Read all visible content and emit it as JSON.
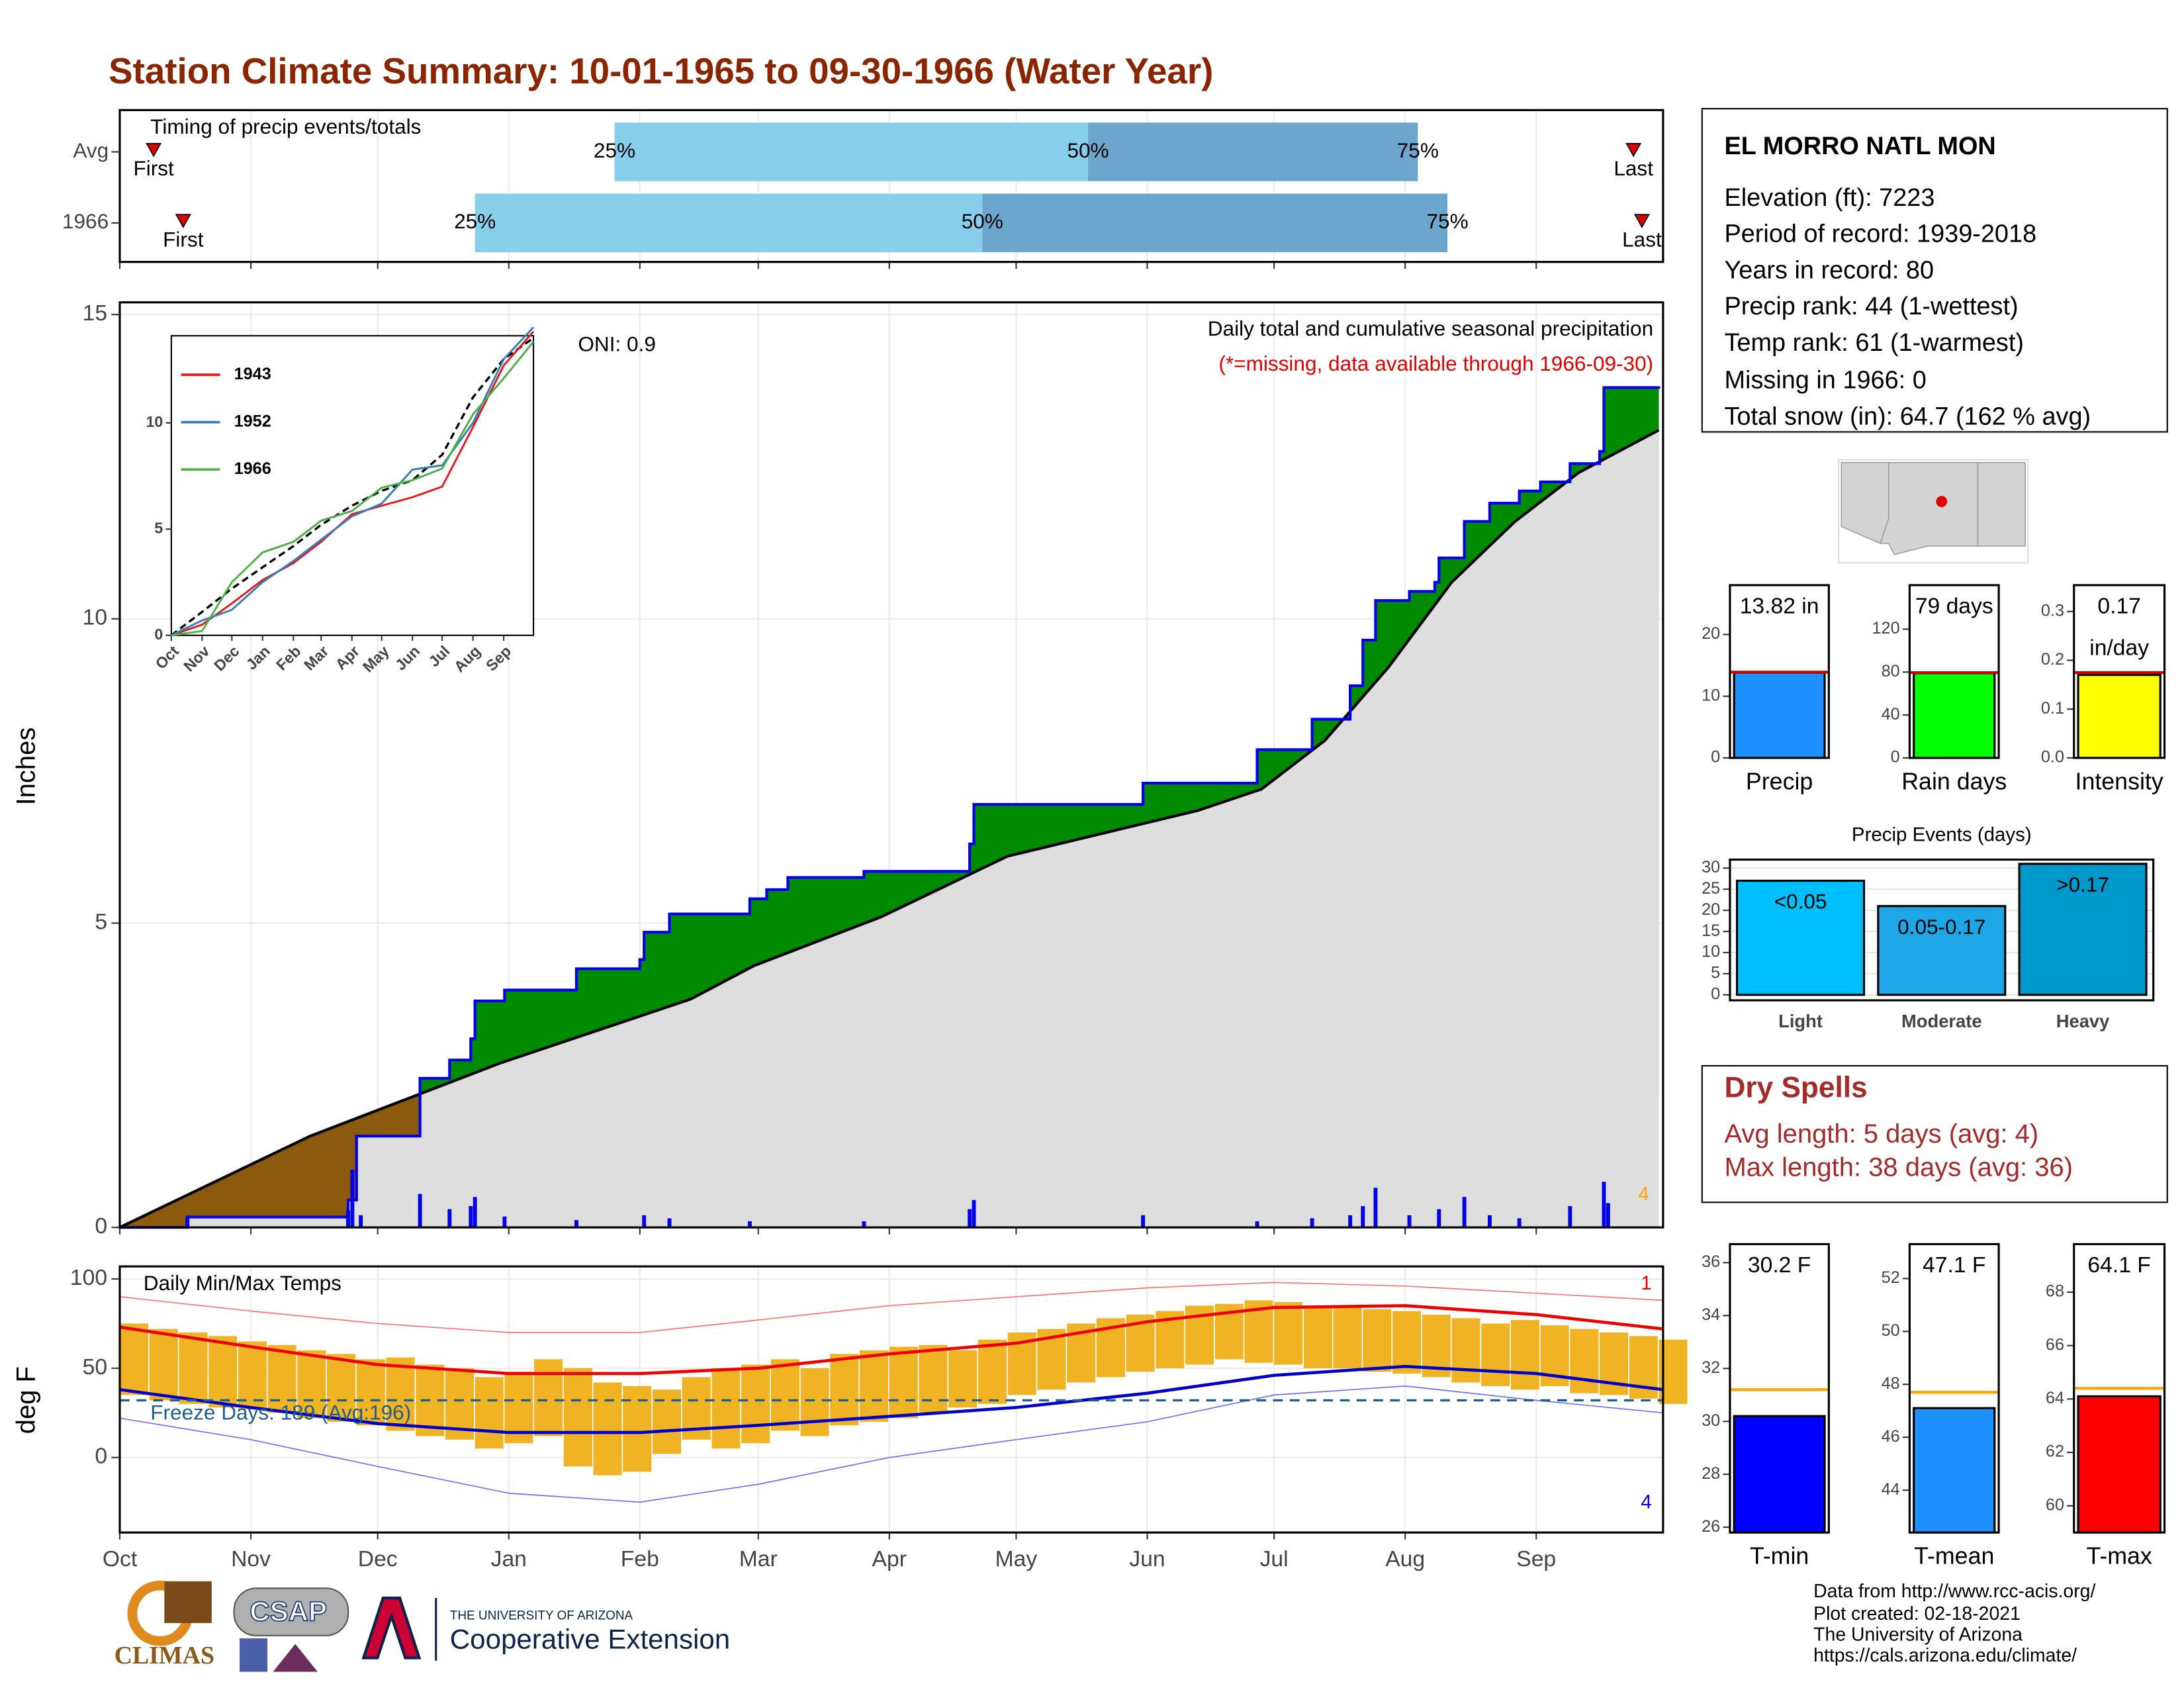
{
  "title": "Station Climate Summary: 10-01-1965 to 09-30-1966 (Water Year)",
  "station": {
    "name": "EL MORRO NATL MON",
    "lines": [
      "Elevation (ft): 7223",
      "Period of record: 1939-2018",
      "Years in record: 80",
      "Precip rank: 44 (1-wettest)",
      "Temp rank: 61 (1-warmest)",
      "Missing in 1966: 0",
      "Total snow (in): 64.7 (162 % avg)"
    ]
  },
  "dry_spells": {
    "title": "Dry Spells",
    "lines": [
      "Avg length: 5 days (avg: 4)",
      "Max length: 38 days (avg: 36)"
    ]
  },
  "credits": [
    "Data from http://www.rcc-acis.org/",
    "Plot created: 02-18-2021",
    "The University of Arizona",
    "https://cals.arizona.edu/climate/"
  ],
  "logos": {
    "climas": "CLIMAS",
    "csap": "CSAP",
    "university": "THE UNIVERSITY OF ARIZONA",
    "extension": "Cooperative Extension"
  },
  "chart_data": [
    {
      "type": "timing",
      "title": "Timing of precip events/totals",
      "quantile_labels": [
        "25%",
        "50%",
        "75%"
      ],
      "first_label": "First",
      "last_label": "Last",
      "xlim": [
        0,
        365
      ],
      "rows": [
        {
          "name": "Avg",
          "first": 8,
          "q25": 117,
          "q50": 229,
          "q75": 307,
          "last": 358
        },
        {
          "name": "1966",
          "first": 15,
          "q25": 84,
          "q50": 204,
          "q75": 314,
          "last": 360
        }
      ],
      "colors": [
        "#87ceeb",
        "#6ca6cd"
      ],
      "marker_color": "#e00000"
    },
    {
      "type": "cumulative",
      "title": "Daily total and cumulative seasonal precipitation",
      "subtitle": "(*=missing, data available through 1966-09-30)",
      "annotation": "ONI: 0.9",
      "y_label": "Inches",
      "xlim": [
        0,
        365
      ],
      "ylim": [
        0,
        15.2
      ],
      "yticks": [
        0,
        5,
        10,
        15
      ],
      "grid": true,
      "observed": {
        "color": "#0000ee",
        "x": [
          0,
          16,
          54,
          56,
          70,
          71,
          78,
          83,
          84,
          90,
          91,
          107,
          108,
          123,
          124,
          129,
          130,
          148,
          149,
          153,
          158,
          175,
          176,
          200,
          201,
          202,
          241,
          242,
          268,
          269,
          281,
          282,
          290,
          291,
          294,
          297,
          305,
          311,
          312,
          318,
          324,
          331,
          336,
          343,
          350,
          351,
          364
        ],
        "values": [
          0,
          0.17,
          0.45,
          1.5,
          1.5,
          2.45,
          2.75,
          3.1,
          3.72,
          3.72,
          3.9,
          3.9,
          4.25,
          4.4,
          4.85,
          4.85,
          5.15,
          5.15,
          5.4,
          5.55,
          5.75,
          5.75,
          5.85,
          5.85,
          6.3,
          6.95,
          6.95,
          7.3,
          7.3,
          7.85,
          7.85,
          8.35,
          8.35,
          8.9,
          9.65,
          10.3,
          10.45,
          10.6,
          11.0,
          11.6,
          11.9,
          12.1,
          12.25,
          12.55,
          12.75,
          13.8,
          13.82
        ]
      },
      "average": {
        "color": "#000000",
        "x": [
          0,
          15,
          30,
          45,
          60,
          75,
          90,
          105,
          120,
          135,
          150,
          165,
          180,
          195,
          210,
          225,
          240,
          255,
          270,
          285,
          300,
          315,
          330,
          345,
          364
        ],
        "values": [
          0,
          0.5,
          1.0,
          1.5,
          1.9,
          2.3,
          2.7,
          3.05,
          3.4,
          3.75,
          4.3,
          4.7,
          5.1,
          5.6,
          6.1,
          6.35,
          6.6,
          6.85,
          7.2,
          8.0,
          9.2,
          10.6,
          11.6,
          12.4,
          13.1
        ]
      },
      "daily": {
        "color": "#0000ee",
        "x": [
          16,
          54,
          55,
          57,
          71,
          78,
          83,
          84,
          91,
          108,
          124,
          130,
          149,
          176,
          201,
          202,
          242,
          269,
          282,
          291,
          294,
          297,
          305,
          312,
          318,
          324,
          331,
          343,
          351,
          352
        ],
        "values": [
          0.17,
          0.28,
          0.95,
          0.2,
          0.55,
          0.3,
          0.35,
          0.5,
          0.18,
          0.12,
          0.2,
          0.15,
          0.1,
          0.1,
          0.3,
          0.45,
          0.2,
          0.1,
          0.15,
          0.2,
          0.35,
          0.65,
          0.2,
          0.3,
          0.5,
          0.2,
          0.15,
          0.35,
          0.75,
          0.4
        ]
      },
      "above_color": "#008b00",
      "below_color": "#8b5a0d",
      "base_color": "#dedede",
      "record_count": 4,
      "record_color": "#ffa500",
      "subtitle_color": "#e00000"
    },
    {
      "type": "line",
      "xlim": [
        0,
        365
      ],
      "ylim": [
        0,
        14.1
      ],
      "yticks": [
        0,
        5,
        10
      ],
      "xticks": [
        {
          "value": 0,
          "label": "Oct"
        },
        {
          "value": 31,
          "label": "Nov"
        },
        {
          "value": 61,
          "label": "Dec"
        },
        {
          "value": 92,
          "label": "Jan"
        },
        {
          "value": 123,
          "label": "Feb"
        },
        {
          "value": 151,
          "label": "Mar"
        },
        {
          "value": 182,
          "label": "Apr"
        },
        {
          "value": 212,
          "label": "May"
        },
        {
          "value": 243,
          "label": "Jun"
        },
        {
          "value": 273,
          "label": "Jul"
        },
        {
          "value": 304,
          "label": "Aug"
        },
        {
          "value": 335,
          "label": "Sep"
        }
      ],
      "x": [
        0,
        31,
        61,
        92,
        123,
        151,
        182,
        212,
        243,
        273,
        304,
        335,
        365
      ],
      "series": [
        {
          "name": "1943",
          "color": "#e41a1c",
          "values": [
            0,
            0.5,
            1.5,
            2.6,
            3.4,
            4.4,
            5.7,
            6.1,
            6.5,
            7.0,
            9.8,
            12.7,
            14.3
          ]
        },
        {
          "name": "1952",
          "color": "#377eb8",
          "values": [
            0,
            0.7,
            1.2,
            2.5,
            3.5,
            4.5,
            5.6,
            6.2,
            7.8,
            8.0,
            10.0,
            13.0,
            14.5
          ]
        },
        {
          "name": "1966",
          "color": "#4daf4a",
          "values": [
            0,
            0.2,
            2.5,
            3.9,
            4.4,
            5.4,
            5.85,
            6.95,
            7.3,
            7.85,
            10.4,
            12.1,
            13.82
          ]
        }
      ],
      "average": {
        "color": "#000000",
        "values": [
          0,
          1.1,
          2.2,
          3.2,
          4.2,
          5.2,
          6.1,
          6.8,
          7.3,
          8.5,
          11.2,
          13.0,
          14.0
        ]
      }
    },
    {
      "type": "temperature",
      "title": "Daily Min/Max Temps",
      "y_label": "deg F",
      "annotation": "Freeze Days: 189 (Avg:196)",
      "freeze_line": 32,
      "freeze_color": "#1f5f8b",
      "xlim": [
        0,
        365
      ],
      "ylim": [
        -42,
        107
      ],
      "yticks": [
        0,
        50,
        100
      ],
      "grid": true,
      "xticks": [
        {
          "value": 0,
          "label": "Oct"
        },
        {
          "value": 31,
          "label": "Nov"
        },
        {
          "value": 61,
          "label": "Dec"
        },
        {
          "value": 92,
          "label": "Jan"
        },
        {
          "value": 123,
          "label": "Feb"
        },
        {
          "value": 151,
          "label": "Mar"
        },
        {
          "value": 182,
          "label": "Apr"
        },
        {
          "value": 212,
          "label": "May"
        },
        {
          "value": 243,
          "label": "Jun"
        },
        {
          "value": 273,
          "label": "Jul"
        },
        {
          "value": 304,
          "label": "Aug"
        },
        {
          "value": 335,
          "label": "Sep"
        }
      ],
      "x": [
        0,
        7,
        14,
        21,
        28,
        35,
        42,
        49,
        56,
        63,
        70,
        77,
        84,
        91,
        98,
        105,
        112,
        119,
        126,
        133,
        140,
        147,
        154,
        161,
        168,
        175,
        182,
        189,
        196,
        203,
        210,
        217,
        224,
        231,
        238,
        245,
        252,
        259,
        266,
        273,
        280,
        287,
        294,
        301,
        308,
        315,
        322,
        329,
        336,
        343,
        350,
        357,
        364
      ],
      "tmax": [
        75,
        72,
        70,
        68,
        65,
        63,
        60,
        58,
        55,
        56,
        52,
        50,
        45,
        48,
        55,
        50,
        42,
        40,
        38,
        45,
        50,
        52,
        55,
        50,
        58,
        60,
        62,
        63,
        60,
        66,
        70,
        72,
        75,
        78,
        80,
        82,
        85,
        86,
        88,
        87,
        85,
        84,
        83,
        82,
        80,
        78,
        75,
        77,
        74,
        72,
        70,
        68,
        66
      ],
      "tmin": [
        35,
        32,
        30,
        28,
        27,
        25,
        22,
        20,
        18,
        15,
        12,
        10,
        5,
        8,
        12,
        -5,
        -10,
        -8,
        2,
        10,
        5,
        8,
        15,
        12,
        18,
        20,
        22,
        25,
        28,
        30,
        35,
        38,
        42,
        45,
        48,
        50,
        52,
        55,
        53,
        52,
        50,
        50,
        48,
        47,
        45,
        42,
        40,
        38,
        40,
        36,
        35,
        33,
        30
      ],
      "bar_color": "#f0b323",
      "avg_x": [
        0,
        31,
        61,
        92,
        123,
        151,
        182,
        212,
        243,
        273,
        304,
        335,
        365
      ],
      "avg_max": [
        73,
        62,
        52,
        47,
        47,
        50,
        58,
        64,
        76,
        84,
        85,
        80,
        72
      ],
      "avg_min": [
        38,
        28,
        19,
        14,
        14,
        18,
        23,
        28,
        36,
        46,
        51,
        47,
        38
      ],
      "record_high": [
        90,
        82,
        75,
        70,
        70,
        77,
        85,
        90,
        95,
        98,
        96,
        92,
        88
      ],
      "record_low": [
        22,
        10,
        -5,
        -20,
        -25,
        -15,
        0,
        10,
        20,
        35,
        40,
        32,
        25
      ],
      "max_color": "#ee0000",
      "min_color": "#0000cc",
      "record_high_color": "#ff7070",
      "record_low_color": "#7070ff",
      "record_high_count": 1,
      "record_low_count": 4
    },
    {
      "type": "bar",
      "categories": [
        "Precip"
      ],
      "values": [
        13.82
      ],
      "value_labels": [
        "13.82 in"
      ],
      "avg": [
        13.9
      ],
      "ylim": [
        0,
        28
      ],
      "yticks": [
        0,
        10,
        20
      ],
      "color": "#1e90ff",
      "avg_color": "#cc0000"
    },
    {
      "type": "bar",
      "categories": [
        "Rain days"
      ],
      "values": [
        79
      ],
      "value_labels": [
        "79 days"
      ],
      "avg": [
        79.5
      ],
      "ylim": [
        0,
        161
      ],
      "yticks": [
        0,
        40,
        80,
        120
      ],
      "color": "#00ff00",
      "avg_color": "#cc0000"
    },
    {
      "type": "bar",
      "categories": [
        "Intensity"
      ],
      "values": [
        0.17
      ],
      "unit_label": "in/day",
      "avg": [
        0.175
      ],
      "ylim": [
        0,
        0.354
      ],
      "yticks": [
        {
          "value": 0,
          "label": "0.0"
        },
        0.1,
        0.2,
        0.3
      ],
      "color": "#ffff00",
      "avg_color": "#cc0000"
    },
    {
      "type": "bar",
      "title": "Precip Events (days)",
      "categories": [
        "Light",
        "Moderate",
        "Heavy"
      ],
      "values": [
        27,
        21,
        31
      ],
      "bin_labels": [
        "<0.05",
        "0.05-0.17",
        ">0.17"
      ],
      "colors": [
        "#00bfff",
        "#1ea6e6",
        "#0099cc"
      ],
      "ylim": [
        -1.3,
        32
      ],
      "yticks": [
        0,
        5,
        10,
        15,
        20,
        25,
        30
      ],
      "grid": true
    },
    {
      "type": "bar",
      "categories": [
        "T-min"
      ],
      "values": [
        30.2
      ],
      "value_labels": [
        "30.2 F"
      ],
      "avg": [
        31.2
      ],
      "ylim": [
        25.8,
        36.7
      ],
      "yticks": [
        26,
        28,
        30,
        32,
        34,
        36
      ],
      "color": "#0000ff",
      "avg_color": "#ffa500"
    },
    {
      "type": "bar",
      "categories": [
        "T-mean"
      ],
      "values": [
        47.1
      ],
      "value_labels": [
        "47.1 F"
      ],
      "avg": [
        47.7
      ],
      "ylim": [
        42.4,
        53.3
      ],
      "yticks": [
        44,
        46,
        48,
        50,
        52
      ],
      "color": "#1e90ff",
      "avg_color": "#ffa500"
    },
    {
      "type": "bar",
      "categories": [
        "T-max"
      ],
      "values": [
        64.1
      ],
      "value_labels": [
        "64.1 F"
      ],
      "avg": [
        64.4
      ],
      "ylim": [
        59,
        69.8
      ],
      "yticks": [
        60,
        62,
        64,
        66,
        68
      ],
      "color": "#ff0000",
      "avg_color": "#ffa500"
    }
  ]
}
